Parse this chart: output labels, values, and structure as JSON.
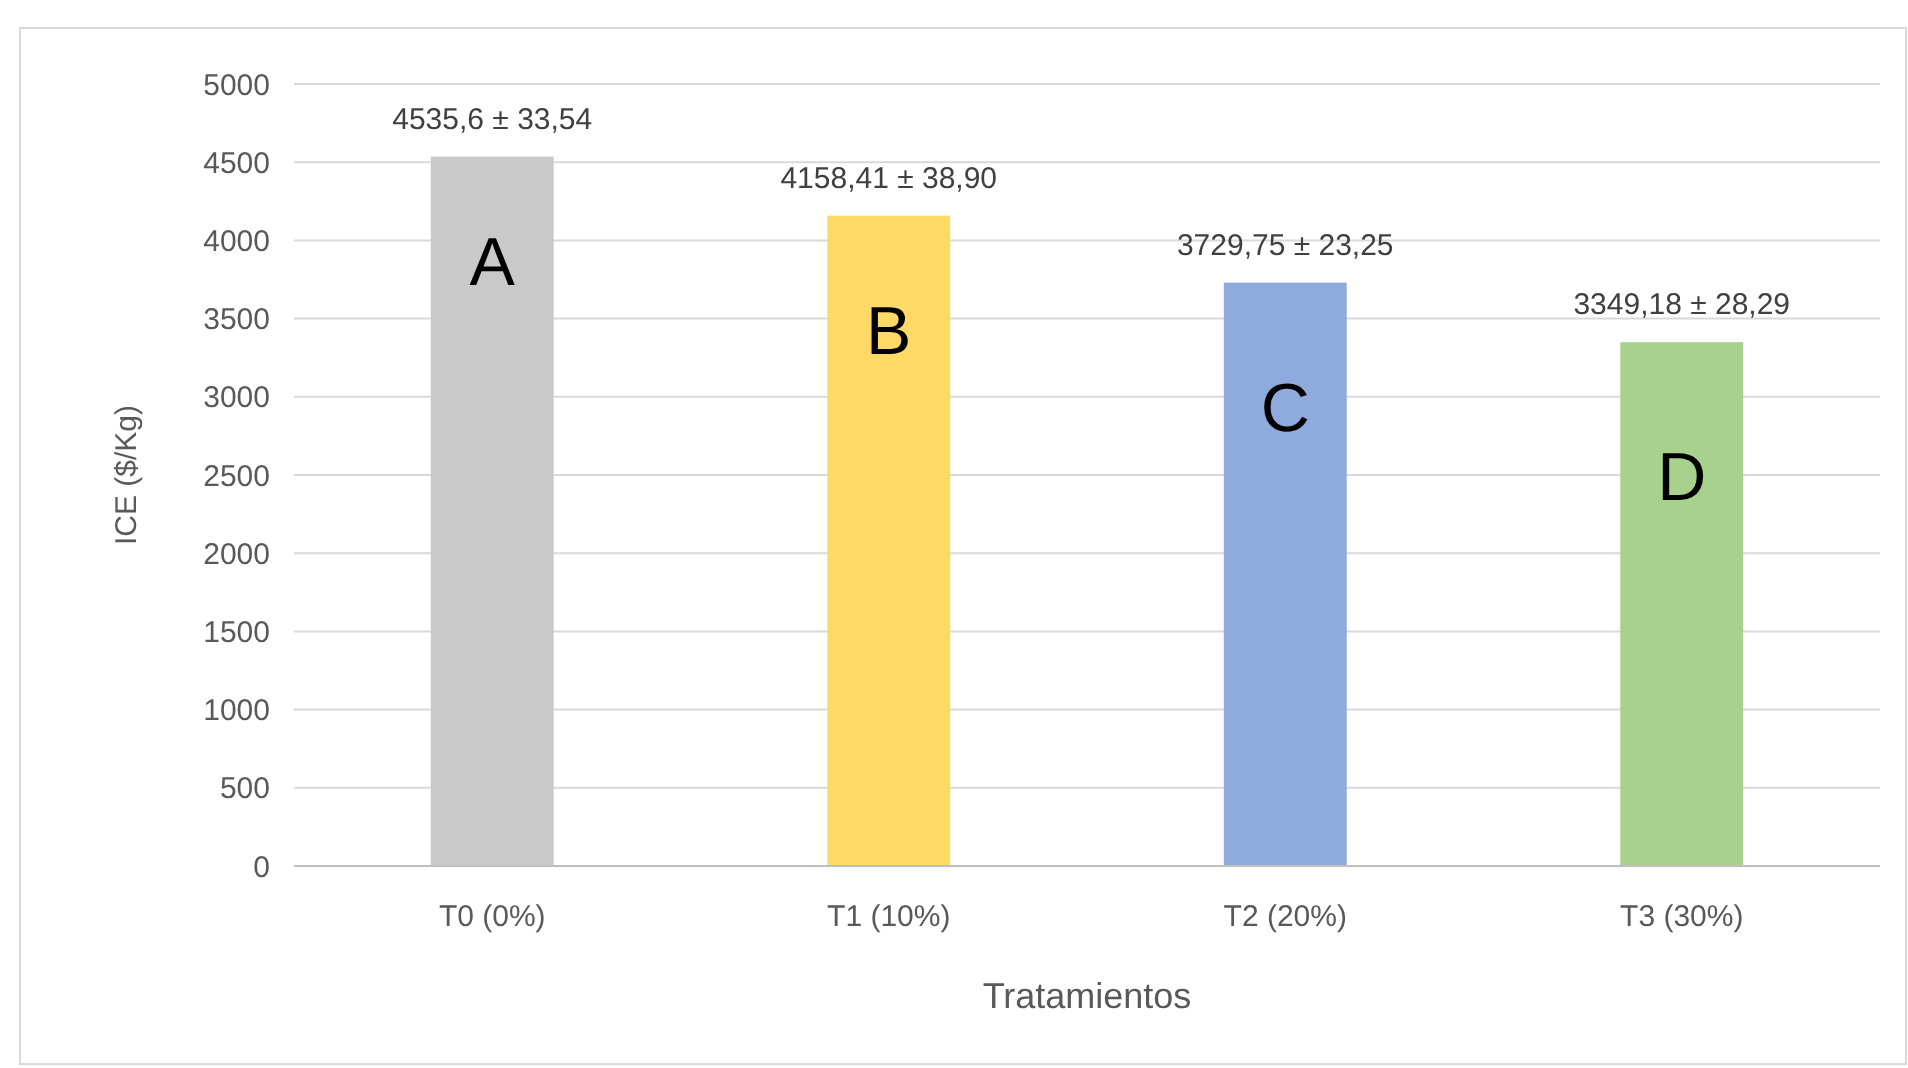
{
  "chart_data": {
    "type": "bar",
    "xlabel": "Tratamientos",
    "ylabel": "ICE ($/Kg)",
    "categories": [
      "T0 (0%)",
      "T1 (10%)",
      "T2 (20%)",
      "T3 (30%)"
    ],
    "values": [
      4535.6,
      4158.41,
      3729.75,
      3349.18
    ],
    "colors": [
      "#c9c9c9",
      "#ffd966",
      "#8faadc",
      "#a9d18e"
    ],
    "value_labels": [
      "4535,6 ± 33,54",
      "4158,41 ± 38,90",
      "3729,75 ± 23,25",
      "3349,18 ± 28,29"
    ],
    "annotations": [
      "A",
      "B",
      "C",
      "D"
    ],
    "ylim": [
      0,
      5000
    ],
    "yticks": [
      0,
      500,
      1000,
      1500,
      2000,
      2500,
      3000,
      3500,
      4000,
      4500,
      5000
    ],
    "grid": "y"
  }
}
